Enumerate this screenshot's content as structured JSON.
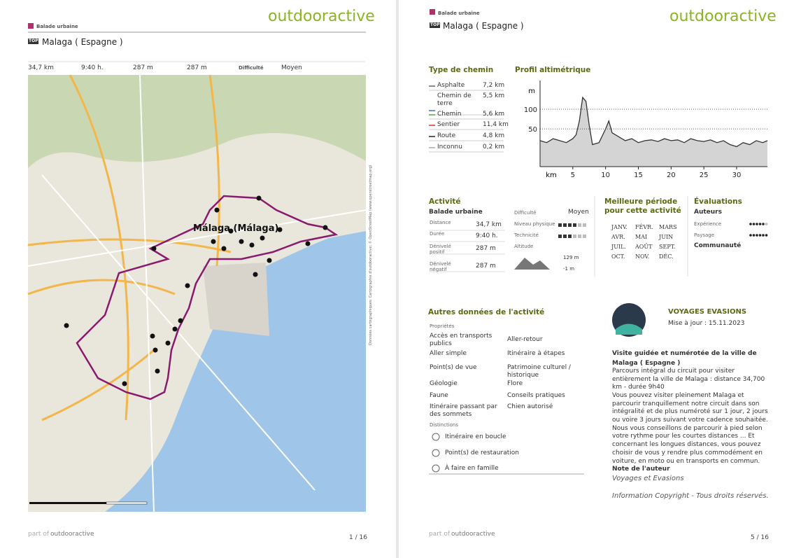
{
  "page_left": {
    "brand": "outdooractive",
    "category": "Balade urbaine",
    "badge": "TOP",
    "title": "Malaga ( Espagne )",
    "stats": [
      "34,7 km",
      "9:40 h.",
      "287 m",
      "287 m"
    ],
    "difficulty_label": "Difficulté",
    "difficulty": "Moyen",
    "map": {
      "city_label": "Málaga (Málaga)",
      "credit": "Données cartographiques: Cartographie d'outdooractive; © OpenStreetMap (www.openstreetmap.org)"
    },
    "footer": {
      "prefix": "part of",
      "brand": "outdooractive",
      "page": "1 / 16"
    }
  },
  "page_right": {
    "brand": "outdooractive",
    "category": "Balade urbaine",
    "badge": "TOP",
    "title": "Malaga ( Espagne )",
    "surface": {
      "title": "Type de chemin",
      "rows": [
        {
          "label": "Asphalte",
          "value": "7,2 km",
          "color": "#666666"
        },
        {
          "label": "Chemin de terre",
          "value": "5,5 km",
          "color": "#3a6fc4"
        },
        {
          "label": "Chemin",
          "value": "5,6 km",
          "color": "#4caf3a"
        },
        {
          "label": "Sentier",
          "value": "11,4 km",
          "color": "#e03030"
        },
        {
          "label": "Route",
          "value": "4,8 km",
          "color": "#222222"
        },
        {
          "label": "Inconnu",
          "value": "0,2 km",
          "color": "#aaaaaa"
        }
      ]
    },
    "profile": {
      "title": "Profil altimétrique",
      "y_unit": "m",
      "x_unit": "km",
      "ylim": [
        -46,
        173
      ],
      "xlim": [
        0,
        34.7
      ],
      "yticks": [
        50,
        100
      ],
      "xticks": [
        5,
        10,
        15,
        20,
        25,
        30
      ],
      "km": [
        0,
        1,
        2,
        3,
        4,
        5,
        5.5,
        6,
        6.5,
        7,
        7.5,
        8,
        9,
        10,
        10.5,
        11,
        12,
        13,
        14,
        15,
        16,
        17,
        18,
        19,
        20,
        21,
        22,
        23,
        24,
        25,
        26,
        27,
        28,
        29,
        30,
        31,
        32,
        33,
        34,
        34.7
      ],
      "elevation": [
        20,
        15,
        25,
        20,
        15,
        25,
        35,
        70,
        130,
        120,
        60,
        10,
        15,
        50,
        70,
        40,
        30,
        20,
        25,
        15,
        20,
        22,
        18,
        25,
        20,
        22,
        15,
        25,
        20,
        18,
        22,
        15,
        20,
        10,
        5,
        15,
        10,
        20,
        15,
        20
      ]
    },
    "activity": {
      "title": "Activité",
      "type": "Balade urbaine",
      "rows": [
        {
          "label": "Distance",
          "value": "34,7 km"
        },
        {
          "label": "Durée",
          "value": "9:40 h."
        },
        {
          "label": "Dénivelé positif",
          "value": "287 m"
        },
        {
          "label": "Dénivelé négatif",
          "value": "287 m"
        }
      ],
      "difficulty_label": "Difficulté",
      "difficulty": "Moyen",
      "physical_label": "Niveau physique",
      "technique_label": "Technicité",
      "altitude_label": "Altitude",
      "altitude_max": "129 m",
      "altitude_min": "-1 m"
    },
    "season": {
      "title": "Meilleure période pour cette activité",
      "months": [
        "JANV.",
        "FÉVR.",
        "MARS",
        "AVR.",
        "MAI",
        "JUIN",
        "JUIL.",
        "AOÛT",
        "SEPT.",
        "OCT.",
        "NOV.",
        "DÉC."
      ]
    },
    "ratings": {
      "title": "Évaluations",
      "authors": "Auteurs",
      "experience": "Expérience",
      "landscape": "Paysage",
      "community": "Communauté"
    },
    "details": {
      "title": "Autres données de l'activité",
      "properties_title": "Propriétés",
      "properties": [
        "Accès en transports publics",
        "Aller-retour",
        "Aller simple",
        "Itinéraire à étapes",
        "Point(s) de vue",
        "Patrimoine culturel / historique",
        "Géologie",
        "Flore",
        "Faune",
        "Conseils pratiques",
        "Itinéraire passant par des sommets",
        "Chien autorisé"
      ],
      "distinctions_title": "Distinctions",
      "distinctions": [
        "Itinéraire en boucle",
        "Point(s) de restauration",
        "À faire en famille"
      ]
    },
    "author": {
      "name": "VOYAGES EVASIONS",
      "updated": "Mise à jour : 15.11.2023",
      "headline": "Visite guidée et numérotée de la ville de Malaga ( Espagne )",
      "intro": "Parcours intégral du circuit pour visiter entièrement la ville de Malaga : distance 34,700 km - durée 9h40",
      "body": "Vous pouvez visiter pleinement Malaga et parcourir tranquillement notre circuit dans son intégralité et de plus numéroté sur 1 jour, 2 jours ou voire 3 jours suivant votre cadence souhaitée. Nous vous conseillons de parcourir à pied selon votre rythme pour les courtes distances ... Et concernant les longues distances, vous pouvez choisir de vous y rendre plus commodément en voiture, en moto ou en transports en commun.",
      "note_title": "Note de l'auteur",
      "note": "Voyages et Evasions",
      "copyright": "Information Copyright - Tous droits réservés."
    },
    "footer": {
      "prefix": "part of",
      "brand": "outdooractive",
      "page": "5 / 16"
    }
  }
}
